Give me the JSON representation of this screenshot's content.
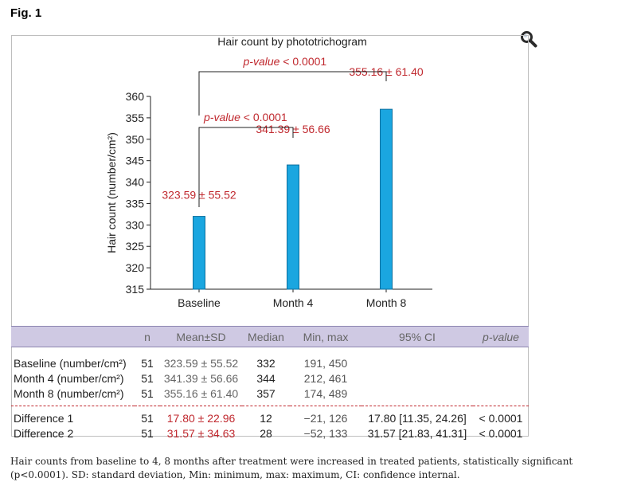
{
  "figure_label": "Fig. 1",
  "zoom_icon": "magnifier-icon",
  "colors": {
    "bar": "#1aa6e0",
    "bar_stroke": "#0d6f9e",
    "annotation": "#c0282e",
    "header_bg": "#cfc9e3"
  },
  "chart_data": {
    "type": "bar",
    "title": "Hair count by phototrichogram",
    "ylabel": "Hair count (number/cm²)",
    "xlabel": "",
    "categories": [
      "Baseline",
      "Month 4",
      "Month 8"
    ],
    "values": [
      332,
      344,
      357
    ],
    "bar_labels": [
      "323.59 ± 55.52",
      "341.39 ± 56.66",
      "355.16 ± 61.40"
    ],
    "ylim": [
      315,
      360
    ],
    "yticks": [
      315,
      320,
      325,
      330,
      335,
      340,
      345,
      350,
      355,
      360
    ],
    "grid": false,
    "brackets": [
      {
        "from": "Baseline",
        "to": "Month 4",
        "label": "p-value < 0.0001"
      },
      {
        "from": "Baseline",
        "to": "Month 8",
        "label": "p-value < 0.0001"
      }
    ]
  },
  "table": {
    "headers": [
      "",
      "n",
      "Mean±SD",
      "Median",
      "Min, max",
      "95% CI",
      "p-value"
    ],
    "rows": [
      {
        "label": "Baseline (number/cm²)",
        "n": "51",
        "mean": "323.59 ± 55.52",
        "median": "332",
        "minmax": "191, 450",
        "ci": "",
        "p": ""
      },
      {
        "label": "Month 4 (number/cm²)",
        "n": "51",
        "mean": "341.39 ± 56.66",
        "median": "344",
        "minmax": "212, 461",
        "ci": "",
        "p": ""
      },
      {
        "label": "Month 8 (number/cm²)",
        "n": "51",
        "mean": "355.16 ± 61.40",
        "median": "357",
        "minmax": "174, 489",
        "ci": "",
        "p": ""
      },
      {
        "label": "Difference 1",
        "n": "51",
        "mean": "17.80 ± 22.96",
        "median": "12",
        "minmax": "−21, 126",
        "ci": "17.80 [11.35, 24.26]",
        "p": "< 0.0001"
      },
      {
        "label": "Difference 2",
        "n": "51",
        "mean": "31.57 ± 34.63",
        "median": "28",
        "minmax": "−52, 133",
        "ci": "31.57 [21.83, 41.31]",
        "p": "< 0.0001"
      }
    ]
  },
  "caption": "Hair counts from baseline to 4, 8 months after treatment were increased in treated patients, statistically significant (p<0.0001). SD: standard deviation, Min: minimum, max: maximum, CI: confidence internal."
}
